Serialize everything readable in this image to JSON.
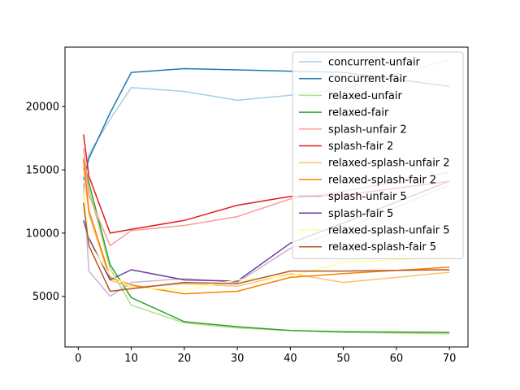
{
  "chart_data": {
    "type": "line",
    "title": "",
    "xlabel": "",
    "ylabel": "",
    "xlim": [
      -2.5,
      73.5
    ],
    "ylim": [
      1000,
      24700
    ],
    "xticks": [
      0,
      10,
      20,
      30,
      40,
      50,
      60,
      70
    ],
    "yticks": [
      5000,
      10000,
      15000,
      20000
    ],
    "grid": false,
    "legend_position": "upper-right",
    "x": [
      1,
      2,
      6,
      10,
      20,
      30,
      40,
      50,
      70
    ],
    "series": [
      {
        "name": "concurrent-unfair",
        "color": "#a6cee3",
        "values": [
          13500,
          16200,
          19000,
          21500,
          21200,
          20500,
          20900,
          21400,
          23700
        ]
      },
      {
        "name": "concurrent-fair",
        "color": "#1f78b4",
        "values": [
          14200,
          15900,
          19500,
          22700,
          23000,
          22900,
          22800,
          22700,
          21600
        ]
      },
      {
        "name": "relaxed-unfair",
        "color": "#b2df8a",
        "values": [
          15600,
          13500,
          7200,
          4300,
          2900,
          2500,
          2300,
          2150,
          2050
        ]
      },
      {
        "name": "relaxed-fair",
        "color": "#33a02c",
        "values": [
          15800,
          14000,
          7500,
          4900,
          3000,
          2600,
          2300,
          2200,
          2150
        ]
      },
      {
        "name": "splash-unfair 2",
        "color": "#fb9a99",
        "values": [
          16700,
          13000,
          9000,
          10200,
          10600,
          11300,
          12700,
          13300,
          14800
        ]
      },
      {
        "name": "splash-fair 2",
        "color": "#e31a1c",
        "values": [
          17800,
          14500,
          10000,
          10300,
          11000,
          12200,
          12900,
          13000,
          14100
        ]
      },
      {
        "name": "relaxed-splash-unfair 2",
        "color": "#fdbf6f",
        "values": [
          15200,
          11500,
          6300,
          5700,
          6000,
          5800,
          6800,
          6100,
          6900
        ]
      },
      {
        "name": "relaxed-splash-fair 2",
        "color": "#ff7f00",
        "values": [
          15900,
          11800,
          6500,
          5900,
          5200,
          5400,
          6500,
          6800,
          7300
        ]
      },
      {
        "name": "splash-unfair 5",
        "color": "#cab2d6",
        "values": [
          13900,
          7000,
          5000,
          6100,
          6400,
          6100,
          8800,
          10300,
          13800
        ]
      },
      {
        "name": "splash-fair 5",
        "color": "#6a3d9a",
        "values": [
          11000,
          9600,
          6300,
          7100,
          6300,
          6200,
          9200,
          10800,
          14100
        ]
      },
      {
        "name": "relaxed-splash-unfair 5",
        "color": "#ffff99",
        "values": [
          13200,
          9200,
          6700,
          5700,
          5500,
          6300,
          6600,
          7700,
          8100
        ]
      },
      {
        "name": "relaxed-splash-fair 5",
        "color": "#b15928",
        "values": [
          12400,
          9000,
          5400,
          5600,
          6100,
          6000,
          7000,
          7000,
          7100
        ]
      }
    ]
  }
}
